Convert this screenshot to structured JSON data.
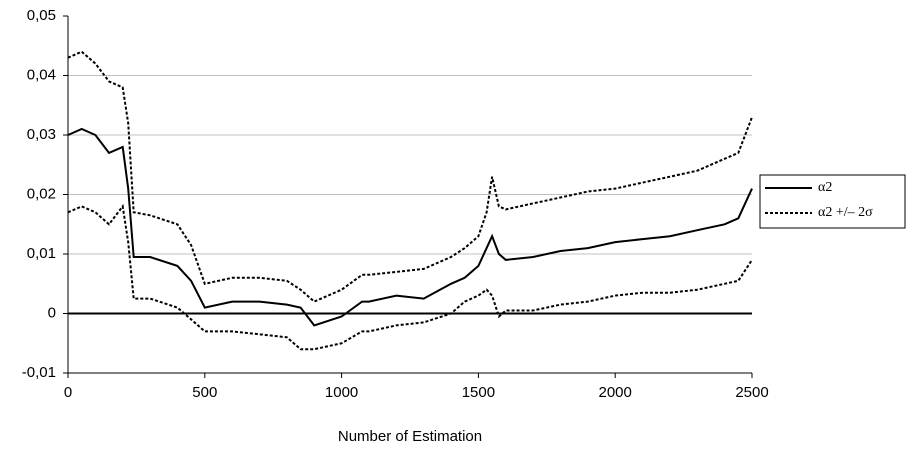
{
  "chart_data": {
    "type": "line",
    "x_label": "Number of Estimation",
    "x": [
      0,
      50,
      100,
      150,
      200,
      220,
      240,
      300,
      400,
      450,
      500,
      600,
      700,
      800,
      850,
      900,
      1000,
      1075,
      1100,
      1200,
      1300,
      1400,
      1450,
      1500,
      1530,
      1550,
      1575,
      1600,
      1700,
      1800,
      1900,
      2000,
      2100,
      2200,
      2300,
      2400,
      2450,
      2500
    ],
    "series": [
      {
        "name": "α2",
        "color": "#000000",
        "dash": "solid",
        "values": [
          0.03,
          0.031,
          0.03,
          0.027,
          0.028,
          0.021,
          0.0095,
          0.0095,
          0.008,
          0.0055,
          0.001,
          0.002,
          0.002,
          0.0015,
          0.001,
          -0.002,
          -0.0005,
          0.002,
          0.002,
          0.003,
          0.0025,
          0.005,
          0.006,
          0.008,
          0.011,
          0.013,
          0.01,
          0.009,
          0.0095,
          0.0105,
          0.011,
          0.012,
          0.0125,
          0.013,
          0.014,
          0.015,
          0.016,
          0.021
        ]
      },
      {
        "name": "α2 +/– 2σ",
        "color": "#000000",
        "dash": "dotted",
        "values": [
          0.043,
          0.044,
          0.042,
          0.039,
          0.038,
          0.032,
          0.017,
          0.0165,
          0.015,
          0.0115,
          0.005,
          0.006,
          0.006,
          0.0055,
          0.004,
          0.002,
          0.004,
          0.0065,
          0.0065,
          0.007,
          0.0075,
          0.0095,
          0.011,
          0.013,
          0.017,
          0.023,
          0.018,
          0.0175,
          0.0185,
          0.0195,
          0.0205,
          0.021,
          0.022,
          0.023,
          0.024,
          0.026,
          0.027,
          0.033
        ],
        "lower": [
          0.017,
          0.018,
          0.017,
          0.015,
          0.018,
          0.012,
          0.0025,
          0.0025,
          0.001,
          -0.001,
          -0.003,
          -0.003,
          -0.0035,
          -0.004,
          -0.006,
          -0.006,
          -0.005,
          -0.003,
          -0.003,
          -0.002,
          -0.0015,
          0,
          0.002,
          0.003,
          0.004,
          0.003,
          -0.0005,
          0.0005,
          0.0005,
          0.0015,
          0.002,
          0.003,
          0.0035,
          0.0035,
          0.004,
          0.005,
          0.0055,
          0.009
        ]
      }
    ],
    "xlim": [
      0,
      2500
    ],
    "xticks": [
      0,
      500,
      1000,
      1500,
      2000,
      2500
    ],
    "ylim": [
      -0.01,
      0.05
    ],
    "yticks": [
      {
        "value": -0.01,
        "label": "-0,01"
      },
      0,
      {
        "value": 0.01,
        "label": "0,01"
      },
      {
        "value": 0.02,
        "label": "0,02"
      },
      {
        "value": 0.03,
        "label": "0,03"
      },
      {
        "value": 0.04,
        "label": "0,04"
      },
      {
        "value": 0.05,
        "label": "0,05"
      }
    ],
    "grid": true,
    "grid_color": "#c0c0c0",
    "legend": "right"
  }
}
